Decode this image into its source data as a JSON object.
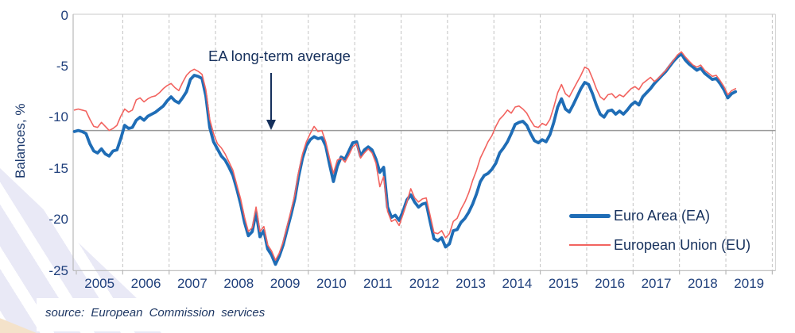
{
  "page": {
    "background": "#ffffff"
  },
  "colors": {
    "ea_line": "#1f6db6",
    "eu_line": "#f2635f",
    "average_line": "#9a9a9a",
    "gridline": "#c3c3c3",
    "axis": "#b9b9b9",
    "text_navy": "#1d3a6d",
    "annotation_navy": "#16305c",
    "decor_stripe": "#e9e9f6",
    "decor_corner": "#f4e2ca"
  },
  "source": {
    "text": "source: European Commission services"
  },
  "chart_data": {
    "type": "line",
    "title": "",
    "xlabel": "",
    "ylabel": "Balances, %",
    "ylim": [
      -25,
      0
    ],
    "y_tick_values": [
      0,
      -5,
      -10,
      -15,
      -20,
      -25
    ],
    "x_tick_labels": [
      "2005",
      "2006",
      "2007",
      "2008",
      "2009",
      "2010",
      "2011",
      "2012",
      "2013",
      "2014",
      "2015",
      "2016",
      "2017",
      "2018",
      "2019"
    ],
    "gridlines": "vertical dashed at each year boundary",
    "legend_position": "inside lower right",
    "frequency": "monthly",
    "x_range": {
      "start": "2004-12",
      "end": "2019-03"
    },
    "average_line": {
      "label": "EA long-term average",
      "value": -11.3
    },
    "series": [
      {
        "name": "Euro Area (EA)",
        "color": "#1f6db6",
        "line_width": "thick",
        "start_month": "2004-12",
        "values": [
          -11.4,
          -11.3,
          -11.4,
          -11.6,
          -12.6,
          -13.3,
          -13.5,
          -13.1,
          -13.6,
          -13.8,
          -13.3,
          -13.2,
          -12.1,
          -10.8,
          -11.1,
          -11.0,
          -10.3,
          -10.0,
          -10.3,
          -9.9,
          -9.7,
          -9.5,
          -9.2,
          -8.9,
          -8.4,
          -8.0,
          -8.4,
          -8.6,
          -8.1,
          -7.5,
          -6.3,
          -5.9,
          -6.0,
          -6.2,
          -7.9,
          -11.0,
          -12.4,
          -13.1,
          -13.8,
          -14.2,
          -14.9,
          -15.7,
          -17.0,
          -18.5,
          -20.3,
          -21.6,
          -21.2,
          -19.3,
          -21.7,
          -21.1,
          -22.9,
          -23.5,
          -24.4,
          -23.6,
          -22.5,
          -21.0,
          -19.6,
          -18.0,
          -15.8,
          -14.0,
          -12.8,
          -12.2,
          -11.9,
          -12.1,
          -12.0,
          -12.8,
          -14.6,
          -16.3,
          -14.8,
          -13.9,
          -14.1,
          -13.3,
          -12.5,
          -12.4,
          -13.8,
          -13.2,
          -12.9,
          -13.2,
          -14.1,
          -15.4,
          -14.9,
          -18.8,
          -19.8,
          -19.6,
          -20.1,
          -19.2,
          -18.1,
          -17.6,
          -18.3,
          -18.8,
          -18.5,
          -18.4,
          -20.2,
          -21.9,
          -22.1,
          -21.8,
          -22.7,
          -22.4,
          -21.1,
          -21.0,
          -20.3,
          -19.9,
          -19.3,
          -18.5,
          -17.5,
          -16.3,
          -15.7,
          -15.5,
          -15.1,
          -14.5,
          -13.5,
          -13.0,
          -12.4,
          -11.6,
          -10.7,
          -10.5,
          -10.4,
          -10.8,
          -11.6,
          -12.3,
          -12.5,
          -12.2,
          -12.4,
          -11.7,
          -10.5,
          -9.0,
          -8.2,
          -9.2,
          -9.5,
          -8.8,
          -8.0,
          -7.2,
          -6.6,
          -6.8,
          -7.7,
          -8.8,
          -9.7,
          -10.0,
          -9.4,
          -9.3,
          -9.7,
          -9.4,
          -9.7,
          -9.3,
          -8.8,
          -8.5,
          -8.8,
          -8.0,
          -7.6,
          -7.2,
          -6.7,
          -6.3,
          -5.9,
          -5.5,
          -5.0,
          -4.5,
          -4.1,
          -3.8,
          -4.4,
          -4.8,
          -5.1,
          -5.4,
          -5.2,
          -5.7,
          -6.0,
          -6.3,
          -6.2,
          -6.7,
          -7.3,
          -8.1,
          -7.7,
          -7.5
        ]
      },
      {
        "name": "European Union (EU)",
        "color": "#f2635f",
        "line_width": "thin",
        "start_month": "2004-12",
        "values": [
          -9.3,
          -9.2,
          -9.3,
          -9.4,
          -10.2,
          -10.9,
          -11.0,
          -10.5,
          -10.9,
          -11.3,
          -11.1,
          -10.8,
          -9.9,
          -9.2,
          -9.5,
          -9.3,
          -8.3,
          -8.1,
          -8.5,
          -8.2,
          -8.0,
          -7.9,
          -7.6,
          -7.2,
          -6.9,
          -6.7,
          -7.1,
          -7.4,
          -6.6,
          -5.9,
          -5.5,
          -5.3,
          -5.5,
          -5.8,
          -7.3,
          -10.2,
          -11.6,
          -12.6,
          -13.0,
          -13.6,
          -14.4,
          -15.2,
          -16.6,
          -18.0,
          -19.8,
          -21.2,
          -20.8,
          -18.8,
          -21.2,
          -20.7,
          -22.5,
          -23.1,
          -24.0,
          -23.3,
          -22.2,
          -20.7,
          -19.2,
          -17.6,
          -15.4,
          -13.6,
          -12.4,
          -11.6,
          -10.9,
          -11.4,
          -11.3,
          -12.4,
          -14.0,
          -15.5,
          -14.2,
          -14.0,
          -14.4,
          -13.7,
          -12.9,
          -12.6,
          -14.0,
          -13.5,
          -13.1,
          -13.5,
          -14.5,
          -16.8,
          -15.8,
          -19.2,
          -20.2,
          -20.0,
          -20.6,
          -19.5,
          -18.3,
          -17.0,
          -17.9,
          -18.3,
          -18.0,
          -17.9,
          -19.6,
          -21.3,
          -21.4,
          -21.1,
          -21.8,
          -21.4,
          -20.2,
          -19.9,
          -19.0,
          -18.3,
          -17.4,
          -16.2,
          -15.2,
          -14.0,
          -13.2,
          -12.4,
          -11.8,
          -10.9,
          -10.2,
          -9.8,
          -9.3,
          -9.6,
          -9.0,
          -8.9,
          -9.2,
          -9.6,
          -10.3,
          -10.9,
          -11.0,
          -10.6,
          -10.8,
          -10.2,
          -9.0,
          -7.6,
          -6.8,
          -7.7,
          -8.0,
          -7.3,
          -6.6,
          -5.9,
          -5.1,
          -5.3,
          -6.2,
          -7.2,
          -8.0,
          -8.3,
          -7.8,
          -7.7,
          -8.1,
          -7.8,
          -8.0,
          -7.6,
          -7.2,
          -7.0,
          -7.3,
          -6.7,
          -6.4,
          -6.1,
          -6.5,
          -6.2,
          -5.8,
          -5.4,
          -4.9,
          -4.4,
          -3.9,
          -3.6,
          -4.1,
          -4.5,
          -4.9,
          -5.1,
          -4.9,
          -5.4,
          -5.7,
          -6.0,
          -5.9,
          -6.4,
          -7.0,
          -7.8,
          -7.4,
          -7.2
        ]
      }
    ]
  }
}
